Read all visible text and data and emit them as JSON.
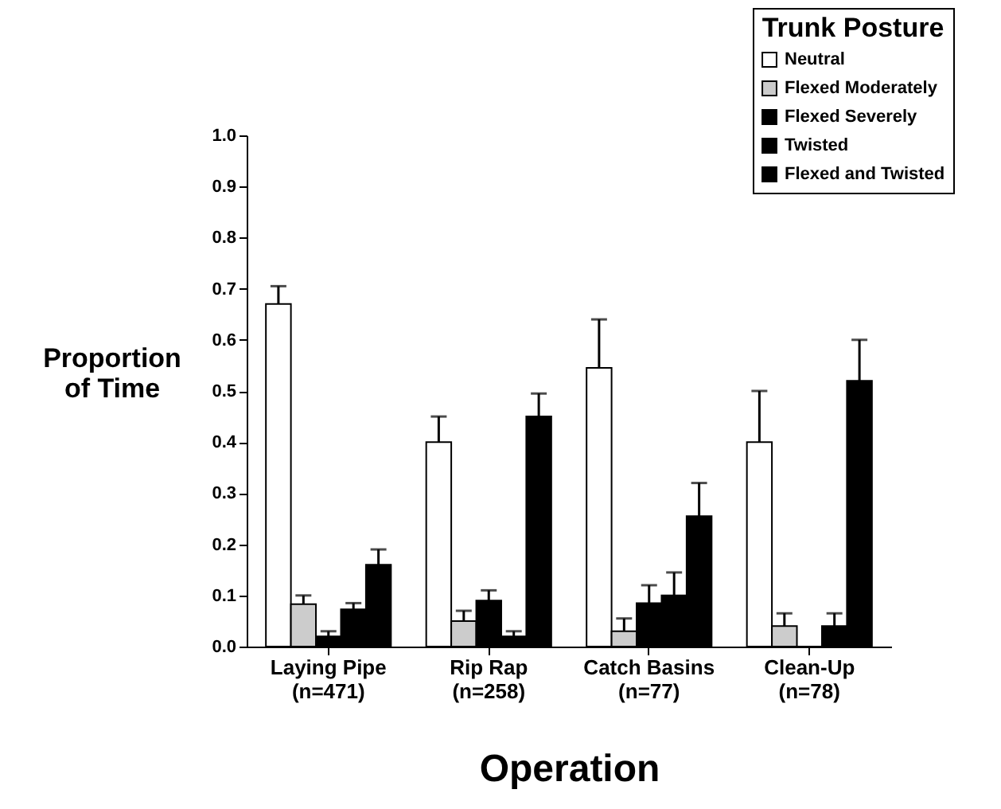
{
  "chart_data": {
    "type": "bar",
    "xlabel": "Operation",
    "ylabel": "Proportion\nof Time",
    "legend_title": "Trunk Posture",
    "categories": [
      "Laying Pipe\n(n=471)",
      "Rip Rap\n(n=258)",
      "Catch Basins\n(n=77)",
      "Clean-Up\n(n=78)"
    ],
    "series": [
      {
        "name": "Neutral",
        "color": "#ffffff",
        "values": [
          0.67,
          0.4,
          0.545,
          0.4
        ],
        "errors": [
          [
            0.67,
            0.705
          ],
          [
            0.4,
            0.45
          ],
          [
            0.545,
            0.64
          ],
          [
            0.4,
            0.5
          ]
        ]
      },
      {
        "name": "Flexed Moderately",
        "color": "#cccccc",
        "values": [
          0.083,
          0.05,
          0.03,
          0.04
        ],
        "errors": [
          [
            0.083,
            0.1
          ],
          [
            0.05,
            0.07
          ],
          [
            0.03,
            0.055
          ],
          [
            0.04,
            0.065
          ]
        ]
      },
      {
        "name": "Flexed Severely",
        "color": "#000000",
        "values": [
          0.02,
          0.09,
          0.085,
          0
        ],
        "errors": [
          [
            0.02,
            0.03
          ],
          [
            0.09,
            0.11
          ],
          [
            0.085,
            0.12
          ],
          null
        ]
      },
      {
        "name": "Twisted",
        "color": "#000000",
        "values": [
          0.073,
          0.02,
          0.1,
          0.04
        ],
        "errors": [
          [
            0.073,
            0.085
          ],
          [
            0.02,
            0.03
          ],
          [
            0.1,
            0.145
          ],
          [
            0.04,
            0.065
          ]
        ]
      },
      {
        "name": "Flexed and Twisted",
        "color": "#000000",
        "values": [
          0.16,
          0.45,
          0.255,
          0.52
        ],
        "errors": [
          [
            0.16,
            0.19
          ],
          [
            0.45,
            0.495
          ],
          [
            0.255,
            0.32
          ],
          [
            0.52,
            0.6
          ]
        ]
      }
    ],
    "ylim": [
      0,
      1
    ],
    "yticks": [
      {
        "value": 0,
        "label": "0.0"
      },
      {
        "value": 0.1,
        "label": "0.1"
      },
      {
        "value": 0.2,
        "label": "0.2"
      },
      {
        "value": 0.3,
        "label": "0.3"
      },
      {
        "value": 0.4,
        "label": "0.4"
      },
      {
        "value": 0.5,
        "label": "0.5"
      },
      {
        "value": 0.6,
        "label": "0.6"
      },
      {
        "value": 0.7,
        "label": "0.7"
      },
      {
        "value": 0.8,
        "label": "0.8"
      },
      {
        "value": 0.9,
        "label": "0.9"
      },
      {
        "value": 1,
        "label": "1.0"
      }
    ],
    "grid": false,
    "legend": "top right"
  }
}
